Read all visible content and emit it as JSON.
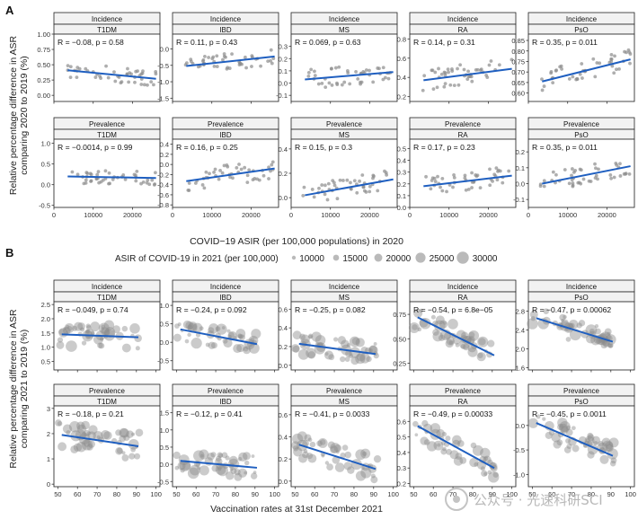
{
  "panel_letters": [
    "A",
    "B"
  ],
  "watermark": "公众号 · 光速科研SCI",
  "colors": {
    "point": "#8c8c8c",
    "line": "#1f5fc0",
    "strip_bg": "#f2f2f2",
    "frame": "#333333"
  },
  "chart_data": [
    {
      "id": "A",
      "type": "scatter",
      "ylabel": "Relative percentage difference in ASR comparing 2020 to 2019 (%)",
      "xlabel": "COVID−19 ASIR (per 100,000 populations) in 2020",
      "xlim": [
        0,
        27000
      ],
      "x_ticks": [
        0,
        10000,
        20000
      ],
      "x_tick_labels": [
        "0",
        "10000",
        "20000"
      ],
      "row_strips": [
        "Incidence",
        "Prevalence"
      ],
      "col_strips": [
        "T1DM",
        "IBD",
        "MS",
        "RA",
        "PsO"
      ],
      "panels": [
        {
          "row": 0,
          "col": 0,
          "stat_label": "R = −0.08, p = 0.58",
          "ylim": [
            -0.1,
            1.0
          ],
          "y_ticks": [
            0,
            0.25,
            0.5,
            0.75,
            1.0
          ],
          "y_tick_labels": [
            "0.00",
            "0.25",
            "0.50",
            "0.75",
            "1.00"
          ],
          "fit": [
            0.41,
            0.27
          ],
          "y_center": 0.33,
          "y_spread": 0.13
        },
        {
          "row": 0,
          "col": 1,
          "stat_label": "R = 0.11, p = 0.43",
          "ylim": [
            -1.6,
            0.45
          ],
          "y_ticks": [
            -1.5,
            -1.0,
            -0.5,
            0.0
          ],
          "y_tick_labels": [
            "-1.5",
            "-1.0",
            "-0.5",
            "0.0"
          ],
          "fit": [
            -0.52,
            -0.23
          ],
          "y_center": -0.35,
          "y_spread": 0.28
        },
        {
          "row": 0,
          "col": 2,
          "stat_label": "R = 0.069, p = 0.63",
          "ylim": [
            -0.15,
            0.4
          ],
          "y_ticks": [
            -0.1,
            0.0,
            0.1,
            0.2,
            0.3
          ],
          "y_tick_labels": [
            "-0.1",
            "0.0",
            "0.1",
            "0.2",
            "0.3"
          ],
          "fit": [
            0.03,
            0.09
          ],
          "y_center": 0.06,
          "y_spread": 0.08
        },
        {
          "row": 0,
          "col": 3,
          "stat_label": "R = 0.14, p = 0.31",
          "ylim": [
            0.15,
            0.85
          ],
          "y_ticks": [
            0.2,
            0.4,
            0.6,
            0.8
          ],
          "y_tick_labels": [
            "0.2",
            "0.4",
            "0.6",
            "0.8"
          ],
          "fit": [
            0.37,
            0.49
          ],
          "y_center": 0.43,
          "y_spread": 0.11
        },
        {
          "row": 1,
          "col": 0,
          "stat_label": "R = −0.0014, p = 0.99",
          "ylim": [
            -0.55,
            1.1
          ],
          "y_ticks": [
            -0.5,
            0.0,
            0.5,
            1.0
          ],
          "y_tick_labels": [
            "-0.5",
            "0.0",
            "0.5",
            "1.0"
          ],
          "fit": [
            0.2,
            0.16
          ],
          "y_center": 0.18,
          "y_spread": 0.17
        },
        {
          "row": 1,
          "col": 1,
          "stat_label": "R = 0.16, p = 0.25",
          "ylim": [
            -0.85,
            0.5
          ],
          "y_ticks": [
            -0.8,
            -0.6,
            -0.4,
            -0.2,
            0.0,
            0.2,
            0.4
          ],
          "y_tick_labels": [
            "-0.8",
            "-0.6",
            "-0.4",
            "-0.2",
            "0.0",
            "0.2",
            "0.4"
          ],
          "fit": [
            -0.33,
            -0.08
          ],
          "y_center": -0.2,
          "y_spread": 0.2
        },
        {
          "row": 1,
          "col": 2,
          "stat_label": "R = 0.15, p = 0.3",
          "ylim": [
            -0.08,
            0.48
          ],
          "y_ticks": [
            0.0,
            0.2,
            0.4
          ],
          "y_tick_labels": [
            "0.0",
            "0.2",
            "0.4"
          ],
          "fit": [
            0.02,
            0.15
          ],
          "y_center": 0.1,
          "y_spread": 0.08
        },
        {
          "row": 1,
          "col": 3,
          "stat_label": "R = 0.17, p = 0.23",
          "ylim": [
            0.0,
            0.58
          ],
          "y_ticks": [
            0.0,
            0.1,
            0.2,
            0.3,
            0.4,
            0.5
          ],
          "y_tick_labels": [
            "0.0",
            "0.1",
            "0.2",
            "0.3",
            "0.4",
            "0.5"
          ],
          "fit": [
            0.18,
            0.27
          ],
          "y_center": 0.22,
          "y_spread": 0.08
        },
        {
          "row": 1,
          "col": 4,
          "stat_label": "R = 0.35, p = 0.011",
          "ylim": [
            -0.15,
            0.28
          ],
          "y_ticks": [
            -0.1,
            0.0,
            0.1,
            0.2
          ],
          "y_tick_labels": [
            "-0.1",
            "0.0",
            "0.1",
            "0.2"
          ],
          "fit": [
            0.0,
            0.11
          ],
          "y_center": 0.06,
          "y_spread": 0.06
        }
      ],
      "pso_incidence": {
        "row": 0,
        "col": 4,
        "stat_label": "R = 0.35, p = 0.011",
        "ylim": [
          0.56,
          0.88
        ],
        "y_ticks": [
          0.6,
          0.65,
          0.7,
          0.75,
          0.8,
          0.85
        ],
        "y_tick_labels": [
          "0.60",
          "0.65",
          "0.70",
          "0.75",
          "0.80",
          "0.85"
        ],
        "fit": [
          0.655,
          0.76
        ],
        "y_center": 0.71,
        "y_spread": 0.05
      }
    },
    {
      "id": "B",
      "type": "scatter",
      "ylabel": "Relative percentage difference in ASR comparing 2021 to 2019 (%)",
      "xlabel": "Vaccination rates at 31st December 2021",
      "xlim": [
        48,
        102
      ],
      "x_ticks": [
        50,
        60,
        70,
        80,
        90,
        100
      ],
      "x_tick_labels": [
        "50",
        "60",
        "70",
        "80",
        "90",
        "100"
      ],
      "row_strips": [
        "Incidence",
        "Prevalence"
      ],
      "col_strips": [
        "T1DM",
        "IBD",
        "MS",
        "RA",
        "PsO"
      ],
      "size_legend": {
        "title": "ASIR of COVID-19 in 2021 (per 100,000)",
        "values": [
          10000,
          15000,
          20000,
          25000,
          30000
        ],
        "labels": [
          "10000",
          "15000",
          "20000",
          "25000",
          "30000"
        ]
      },
      "panels": [
        {
          "row": 0,
          "col": 0,
          "stat_label": "R = −0.049, p = 0.74",
          "ylim": [
            0.2,
            2.6
          ],
          "y_ticks": [
            0.5,
            1.0,
            1.5,
            2.0,
            2.5
          ],
          "y_tick_labels": [
            "0.5",
            "1.0",
            "1.5",
            "2.0",
            "2.5"
          ],
          "fit": [
            1.45,
            1.35
          ],
          "y_center": 1.4,
          "y_spread": 0.4
        },
        {
          "row": 0,
          "col": 1,
          "stat_label": "R = −0.24, p = 0.092",
          "ylim": [
            -0.75,
            1.1
          ],
          "y_ticks": [
            -0.5,
            0.0,
            0.5,
            1.0
          ],
          "y_tick_labels": [
            "-0.5",
            "0.0",
            "0.5",
            "1.0"
          ],
          "fit": [
            0.35,
            -0.05
          ],
          "y_center": 0.15,
          "y_spread": 0.28
        },
        {
          "row": 0,
          "col": 2,
          "stat_label": "R = −0.25, p = 0.082",
          "ylim": [
            -0.05,
            0.68
          ],
          "y_ticks": [
            0.0,
            0.2,
            0.4,
            0.6
          ],
          "y_tick_labels": [
            "0.0",
            "0.2",
            "0.4",
            "0.6"
          ],
          "fit": [
            0.23,
            0.12
          ],
          "y_center": 0.18,
          "y_spread": 0.11
        },
        {
          "row": 0,
          "col": 3,
          "stat_label": "R = −0.54, p = 6.8e−05",
          "ylim": [
            0.18,
            0.88
          ],
          "y_ticks": [
            0.25,
            0.5,
            0.75
          ],
          "y_tick_labels": [
            "0.25",
            "0.50",
            "0.75"
          ],
          "fit": [
            0.72,
            0.33
          ],
          "y_center": 0.55,
          "y_spread": 0.12
        },
        {
          "row": 0,
          "col": 4,
          "stat_label": "R = −0.47, p = 0.00062",
          "ylim": [
            1.55,
            3.0
          ],
          "y_ticks": [
            1.6,
            2.0,
            2.4,
            2.8
          ],
          "y_tick_labels": [
            "1.6",
            "2.0",
            "2.4",
            "2.8"
          ],
          "fit": [
            2.65,
            2.15
          ],
          "y_center": 2.4,
          "y_spread": 0.24
        },
        {
          "row": 1,
          "col": 0,
          "stat_label": "R = −0.18, p = 0.21",
          "ylim": [
            -0.1,
            3.1
          ],
          "y_ticks": [
            0,
            1,
            2,
            3
          ],
          "y_tick_labels": [
            "0",
            "1",
            "2",
            "3"
          ],
          "fit": [
            1.95,
            1.5
          ],
          "y_center": 1.7,
          "y_spread": 0.55
        },
        {
          "row": 1,
          "col": 1,
          "stat_label": "R = −0.12, p = 0.41",
          "ylim": [
            -0.65,
            1.7
          ],
          "y_ticks": [
            -0.5,
            0.0,
            0.5,
            1.0,
            1.5
          ],
          "y_tick_labels": [
            "-0.5",
            "0.0",
            "0.5",
            "1.0",
            "1.5"
          ],
          "fit": [
            0.1,
            -0.1
          ],
          "y_center": 0.0,
          "y_spread": 0.33
        },
        {
          "row": 1,
          "col": 2,
          "stat_label": "R = −0.41, p = 0.0033",
          "ylim": [
            -0.05,
            0.68
          ],
          "y_ticks": [
            0.0,
            0.2,
            0.4,
            0.6
          ],
          "y_tick_labels": [
            "0.0",
            "0.2",
            "0.4",
            "0.6"
          ],
          "fit": [
            0.33,
            0.11
          ],
          "y_center": 0.22,
          "y_spread": 0.11
        },
        {
          "row": 1,
          "col": 3,
          "stat_label": "R = −0.49, p = 0.00033",
          "ylim": [
            0.18,
            0.7
          ],
          "y_ticks": [
            0.2,
            0.3,
            0.4,
            0.5,
            0.6
          ],
          "y_tick_labels": [
            "0.2",
            "0.3",
            "0.4",
            "0.5",
            "0.6"
          ],
          "fit": [
            0.57,
            0.3
          ],
          "y_center": 0.45,
          "y_spread": 0.08
        },
        {
          "row": 1,
          "col": 4,
          "stat_label": "R = −0.45, p = 0.0011",
          "ylim": [
            -1.25,
            0.4
          ],
          "y_ticks": [
            -1.0,
            -0.5,
            0.0
          ],
          "y_tick_labels": [
            "-1.0",
            "-0.5",
            "0.0"
          ],
          "fit": [
            0.05,
            -0.62
          ],
          "y_center": -0.3,
          "y_spread": 0.27
        }
      ]
    }
  ]
}
